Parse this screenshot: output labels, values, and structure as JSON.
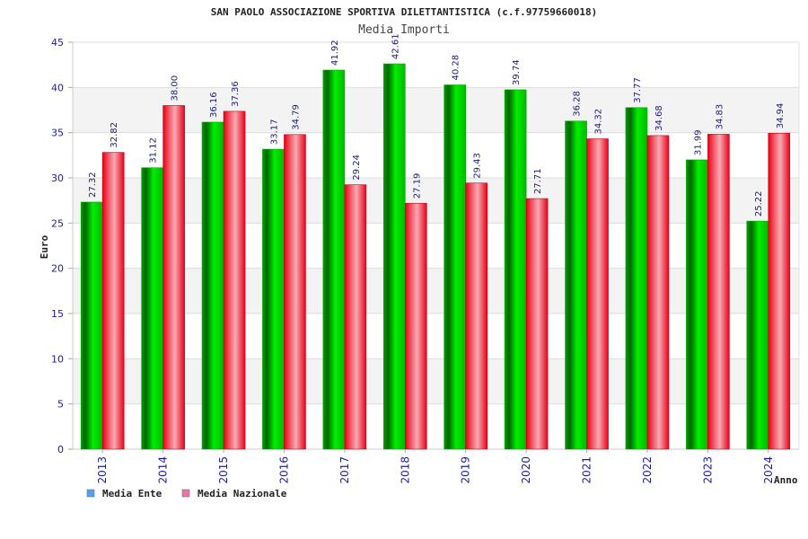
{
  "chart_data": {
    "type": "bar",
    "title": "SAN PAOLO ASSOCIAZIONE SPORTIVA DILETTANTISTICA (c.f.97759660018)",
    "subtitle": "Media Importi",
    "xlabel": "Anno",
    "ylabel": "Euro",
    "ylim": [
      0,
      45
    ],
    "yticks": [
      "0",
      "5",
      "10",
      "15",
      "20",
      "25",
      "30",
      "35",
      "40",
      "45"
    ],
    "grid": true,
    "legend_position": "bottom-left",
    "categories": [
      "2013",
      "2014",
      "2015",
      "2016",
      "2017",
      "2018",
      "2019",
      "2020",
      "2021",
      "2022",
      "2023",
      "2024"
    ],
    "series": [
      {
        "name": "Media Ente",
        "color": "#00bb00",
        "legend_color": "#5aa0e6",
        "values": [
          27.32,
          31.12,
          36.16,
          33.17,
          41.92,
          42.61,
          40.28,
          39.74,
          36.28,
          37.77,
          31.99,
          25.22
        ],
        "labels": [
          "27.32",
          "31.12",
          "36.16",
          "33.17",
          "41.92",
          "42.61",
          "40.28",
          "39.74",
          "36.28",
          "37.77",
          "31.99",
          "25.22"
        ]
      },
      {
        "name": "Media Nazionale",
        "color": "#ee1122",
        "legend_color": "#e07aa8",
        "values": [
          32.82,
          38.0,
          37.36,
          34.79,
          29.24,
          27.19,
          29.43,
          27.71,
          34.32,
          34.68,
          34.83,
          34.94
        ],
        "labels": [
          "32.82",
          "38.00",
          "37.36",
          "34.79",
          "29.24",
          "27.19",
          "29.43",
          "27.71",
          "34.32",
          "34.68",
          "34.83",
          "34.94"
        ]
      }
    ]
  }
}
